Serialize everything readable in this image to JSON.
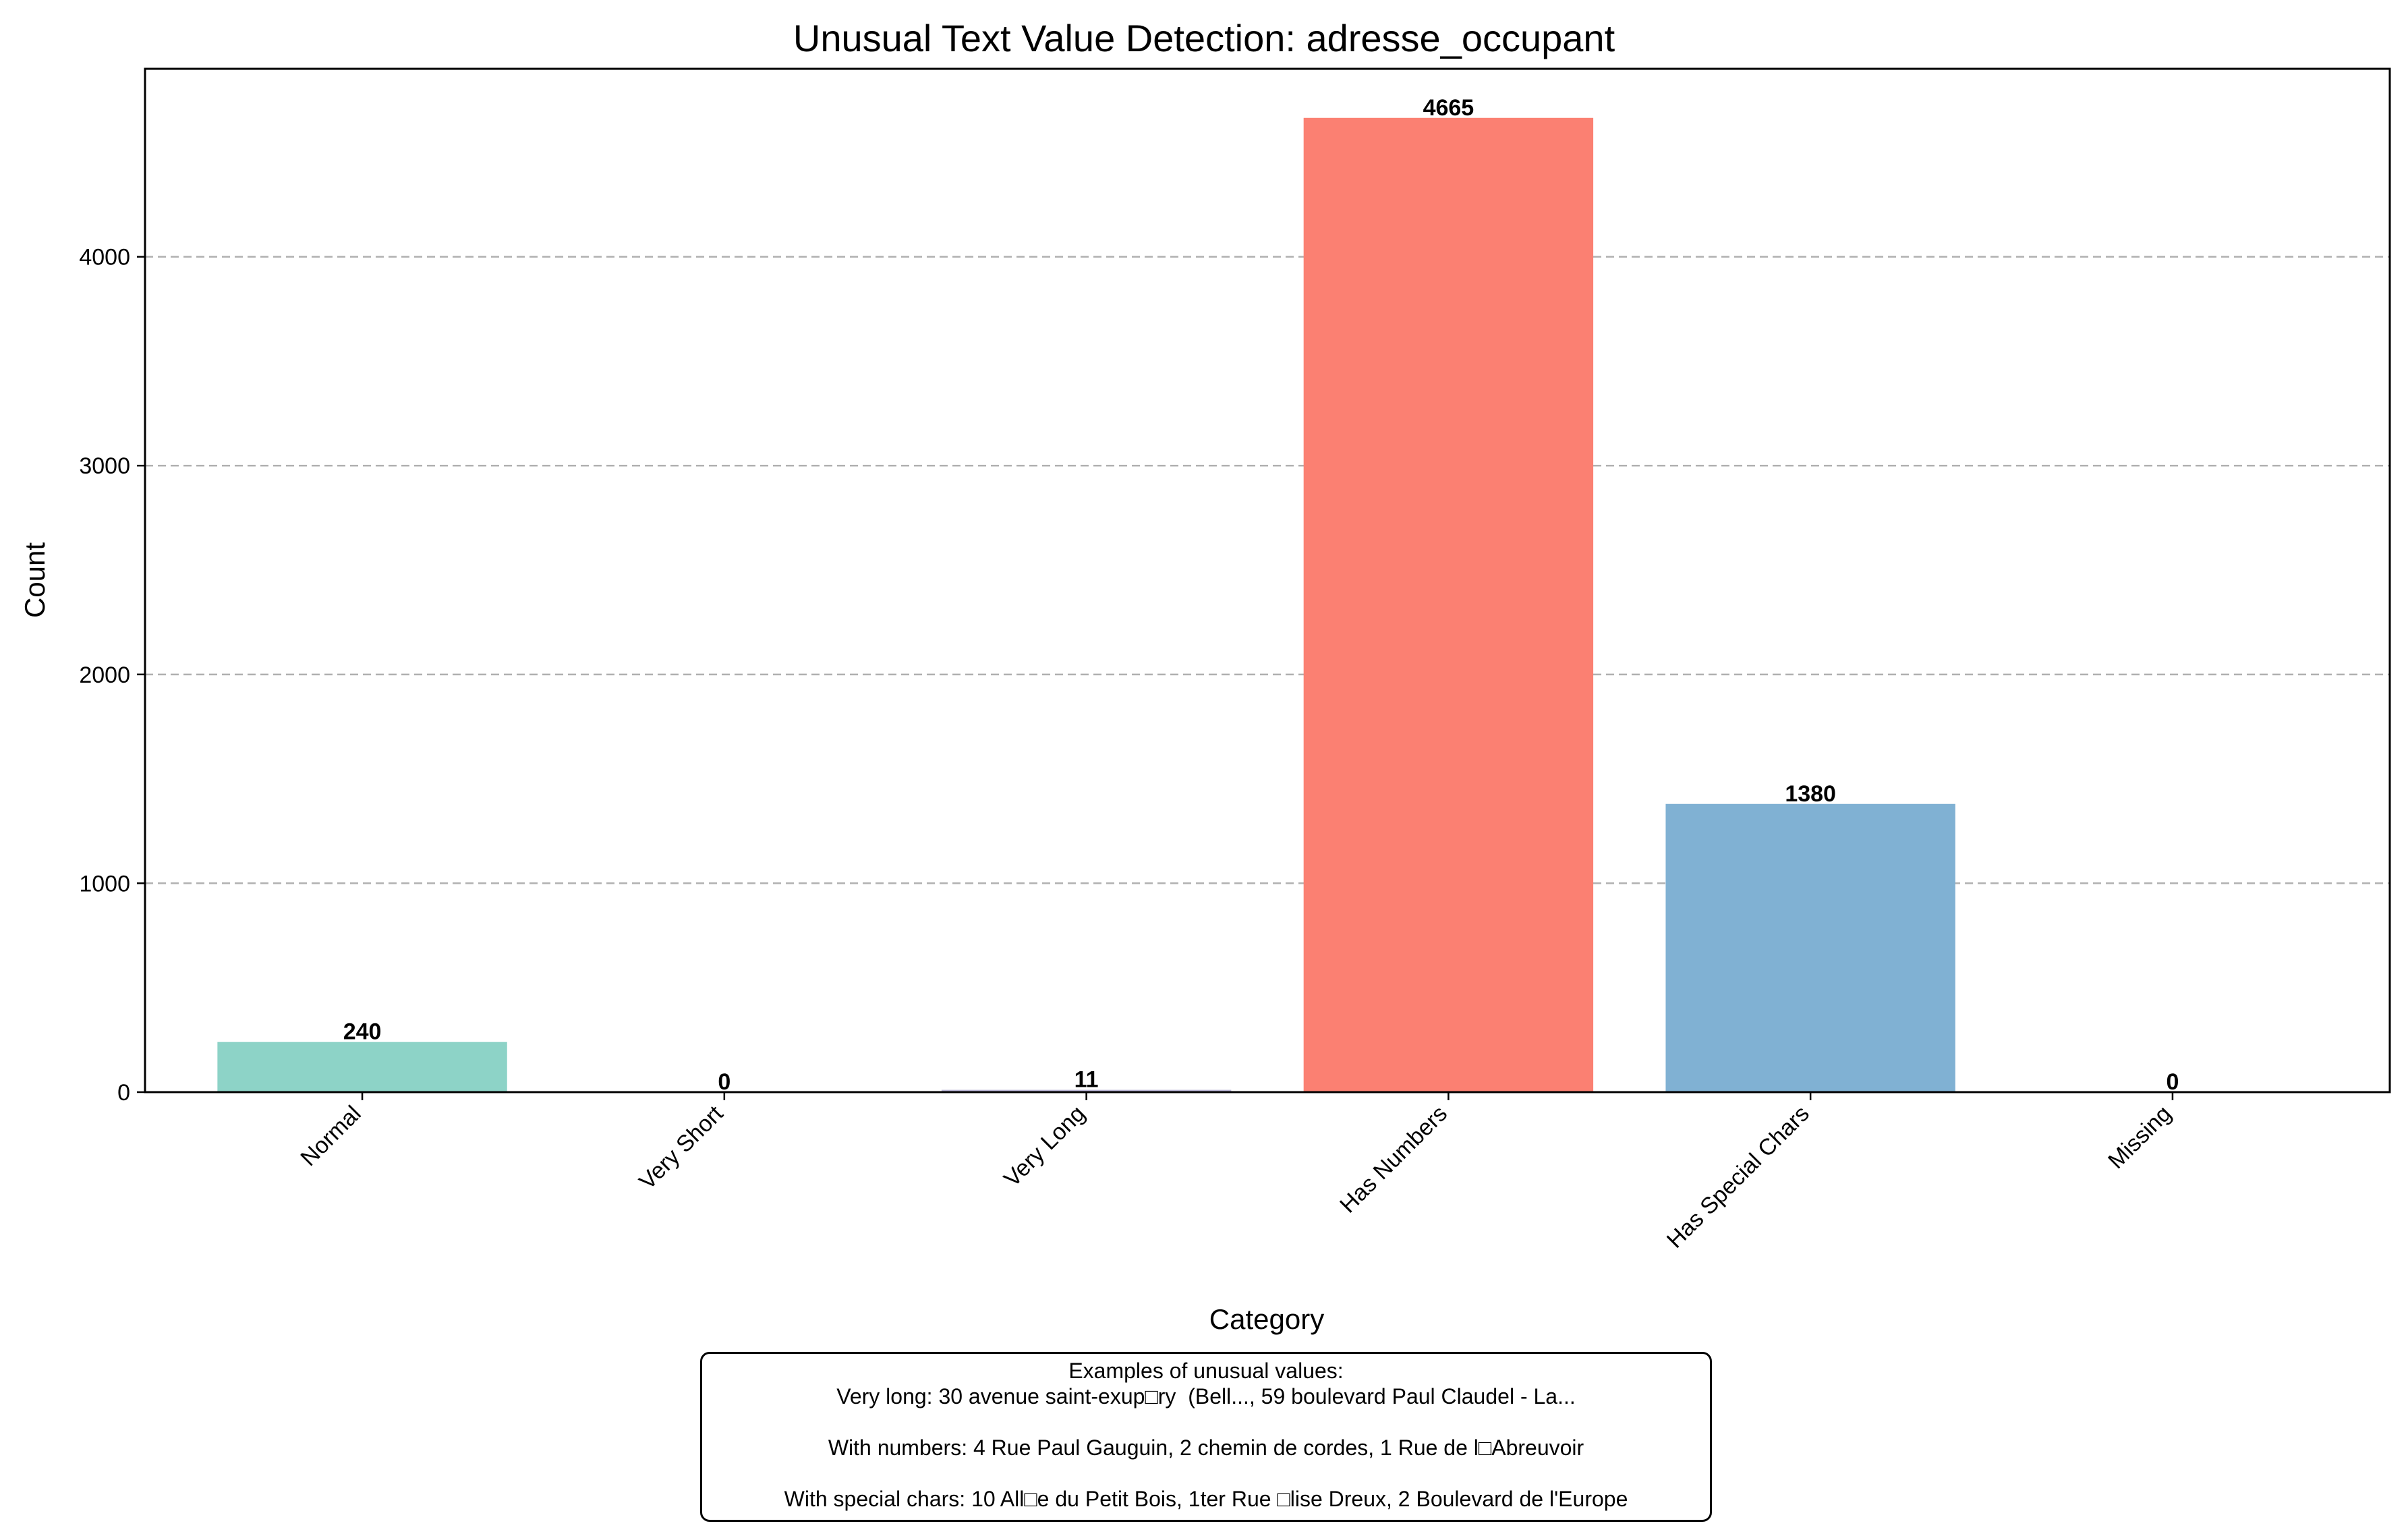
{
  "chart_data": {
    "type": "bar",
    "title": "Unusual Text Value Detection: adresse_occupant",
    "xlabel": "Category",
    "ylabel": "Count",
    "categories": [
      "Normal",
      "Very Short",
      "Very Long",
      "Has Numbers",
      "Has Special Chars",
      "Missing"
    ],
    "values": [
      240,
      0,
      11,
      4665,
      1380,
      0
    ],
    "value_labels": [
      "240",
      "0",
      "11",
      "4665",
      "1380",
      "0"
    ],
    "colors": [
      "#8dd3c7",
      "#ffffb3",
      "#bebada",
      "#fb8072",
      "#80b1d3",
      "#fdb462"
    ],
    "ylim": [
      0,
      4900
    ],
    "yticks": [
      0,
      1000,
      2000,
      3000,
      4000
    ],
    "ytick_labels": [
      "0",
      "1000",
      "2000",
      "3000",
      "4000"
    ],
    "grid": "y-dashed",
    "legend": "none"
  },
  "annotation": {
    "heading": "Examples of unusual values:",
    "very_long": "Very long: 30 avenue saint-exup□ry  (Bell..., 59 boulevard Paul Claudel - La...",
    "with_numbers": "With numbers: 4 Rue Paul Gauguin, 2 chemin de cordes, 1 Rue de l□Abreuvoir",
    "with_special": "With special chars: 10 All□e du Petit Bois, 1ter Rue □lise Dreux, 2 Boulevard de l'Europe"
  }
}
